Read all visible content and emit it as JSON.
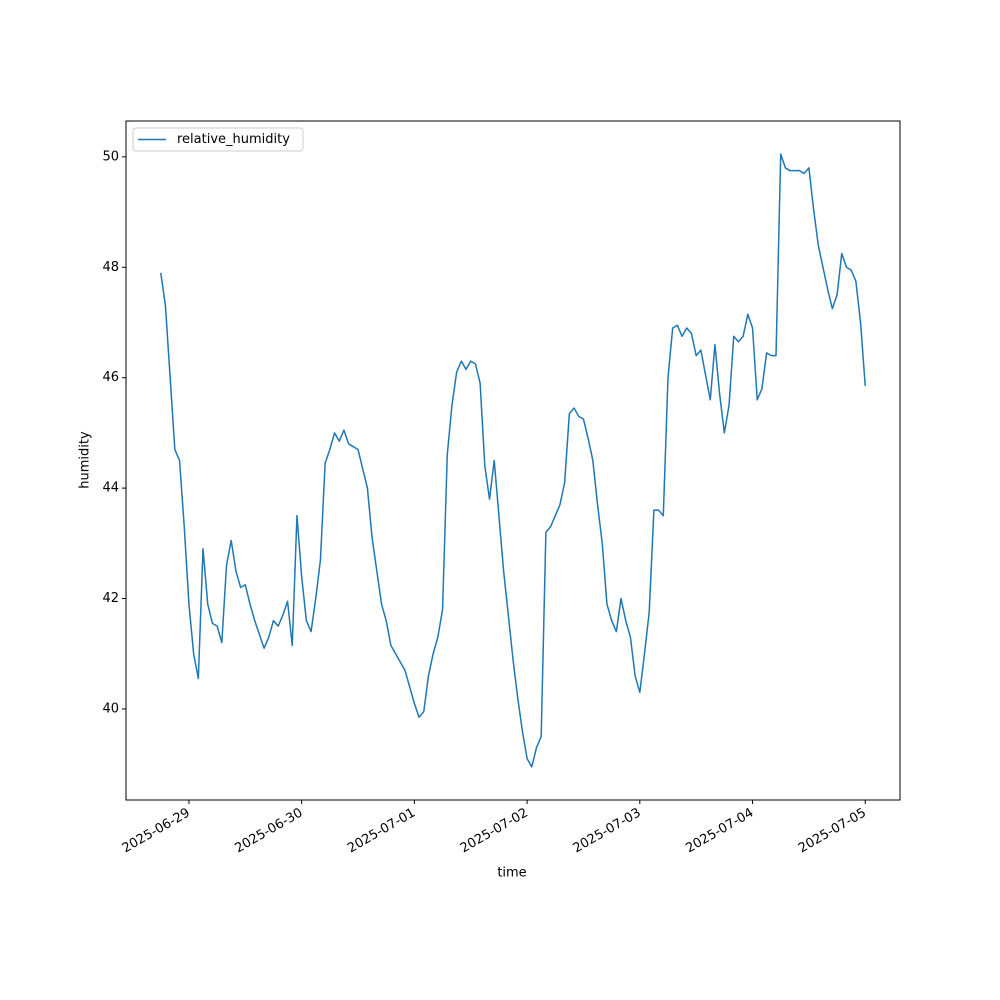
{
  "chart_data": {
    "type": "line",
    "xlabel": "time",
    "ylabel": "humidity",
    "x": [
      "2025-06-28 18:00",
      "2025-06-28 19:00",
      "2025-06-28 20:00",
      "2025-06-28 21:00",
      "2025-06-28 22:00",
      "2025-06-28 23:00",
      "2025-06-29 00:00",
      "2025-06-29 01:00",
      "2025-06-29 02:00",
      "2025-06-29 03:00",
      "2025-06-29 04:00",
      "2025-06-29 05:00",
      "2025-06-29 06:00",
      "2025-06-29 07:00",
      "2025-06-29 08:00",
      "2025-06-29 09:00",
      "2025-06-29 10:00",
      "2025-06-29 11:00",
      "2025-06-29 12:00",
      "2025-06-29 13:00",
      "2025-06-29 14:00",
      "2025-06-29 15:00",
      "2025-06-29 16:00",
      "2025-06-29 17:00",
      "2025-06-29 18:00",
      "2025-06-29 19:00",
      "2025-06-29 20:00",
      "2025-06-29 21:00",
      "2025-06-29 22:00",
      "2025-06-29 23:00",
      "2025-06-30 00:00",
      "2025-06-30 01:00",
      "2025-06-30 02:00",
      "2025-06-30 03:00",
      "2025-06-30 04:00",
      "2025-06-30 05:00",
      "2025-06-30 06:00",
      "2025-06-30 07:00",
      "2025-06-30 08:00",
      "2025-06-30 09:00",
      "2025-06-30 10:00",
      "2025-06-30 11:00",
      "2025-06-30 12:00",
      "2025-06-30 13:00",
      "2025-06-30 14:00",
      "2025-06-30 15:00",
      "2025-06-30 16:00",
      "2025-06-30 17:00",
      "2025-06-30 18:00",
      "2025-06-30 19:00",
      "2025-06-30 20:00",
      "2025-06-30 21:00",
      "2025-06-30 22:00",
      "2025-06-30 23:00",
      "2025-07-01 00:00",
      "2025-07-01 01:00",
      "2025-07-01 02:00",
      "2025-07-01 03:00",
      "2025-07-01 04:00",
      "2025-07-01 05:00",
      "2025-07-01 06:00",
      "2025-07-01 07:00",
      "2025-07-01 08:00",
      "2025-07-01 09:00",
      "2025-07-01 10:00",
      "2025-07-01 11:00",
      "2025-07-01 12:00",
      "2025-07-01 13:00",
      "2025-07-01 14:00",
      "2025-07-01 15:00",
      "2025-07-01 16:00",
      "2025-07-01 17:00",
      "2025-07-01 18:00",
      "2025-07-01 19:00",
      "2025-07-01 20:00",
      "2025-07-01 21:00",
      "2025-07-01 22:00",
      "2025-07-01 23:00",
      "2025-07-02 00:00",
      "2025-07-02 01:00",
      "2025-07-02 02:00",
      "2025-07-02 03:00",
      "2025-07-02 04:00",
      "2025-07-02 05:00",
      "2025-07-02 06:00",
      "2025-07-02 07:00",
      "2025-07-02 08:00",
      "2025-07-02 09:00",
      "2025-07-02 10:00",
      "2025-07-02 11:00",
      "2025-07-02 12:00",
      "2025-07-02 13:00",
      "2025-07-02 14:00",
      "2025-07-02 15:00",
      "2025-07-02 16:00",
      "2025-07-02 17:00",
      "2025-07-02 18:00",
      "2025-07-02 19:00",
      "2025-07-02 20:00",
      "2025-07-02 21:00",
      "2025-07-02 22:00",
      "2025-07-02 23:00",
      "2025-07-03 00:00",
      "2025-07-03 01:00",
      "2025-07-03 02:00",
      "2025-07-03 03:00",
      "2025-07-03 04:00",
      "2025-07-03 05:00",
      "2025-07-03 06:00",
      "2025-07-03 07:00",
      "2025-07-03 08:00",
      "2025-07-03 09:00",
      "2025-07-03 10:00",
      "2025-07-03 11:00",
      "2025-07-03 12:00",
      "2025-07-03 13:00",
      "2025-07-03 14:00",
      "2025-07-03 15:00",
      "2025-07-03 16:00",
      "2025-07-03 17:00",
      "2025-07-03 18:00",
      "2025-07-03 19:00",
      "2025-07-03 20:00",
      "2025-07-03 21:00",
      "2025-07-03 22:00",
      "2025-07-03 23:00",
      "2025-07-04 00:00",
      "2025-07-04 01:00",
      "2025-07-04 02:00",
      "2025-07-04 03:00",
      "2025-07-04 04:00",
      "2025-07-04 05:00",
      "2025-07-04 06:00",
      "2025-07-04 07:00",
      "2025-07-04 08:00",
      "2025-07-04 09:00",
      "2025-07-04 10:00",
      "2025-07-04 11:00",
      "2025-07-04 12:00",
      "2025-07-04 13:00",
      "2025-07-04 14:00",
      "2025-07-04 15:00",
      "2025-07-04 16:00",
      "2025-07-04 17:00",
      "2025-07-04 18:00",
      "2025-07-04 19:00",
      "2025-07-04 20:00",
      "2025-07-04 21:00",
      "2025-07-04 22:00",
      "2025-07-04 23:00",
      "2025-07-05 00:00"
    ],
    "series": [
      {
        "name": "relative_humidity",
        "color": "#1f77b4",
        "values": [
          47.9,
          47.3,
          46.0,
          44.7,
          44.5,
          43.3,
          41.9,
          41.0,
          40.55,
          42.9,
          41.9,
          41.55,
          41.5,
          41.2,
          42.6,
          43.05,
          42.5,
          42.2,
          42.25,
          41.9,
          41.6,
          41.35,
          41.1,
          41.3,
          41.6,
          41.5,
          41.7,
          41.95,
          41.15,
          43.5,
          42.4,
          41.6,
          41.4,
          42.0,
          42.7,
          44.45,
          44.7,
          45.0,
          44.85,
          45.05,
          44.8,
          44.75,
          44.7,
          44.35,
          44.0,
          43.1,
          42.5,
          41.9,
          41.6,
          41.15,
          41.0,
          40.85,
          40.7,
          40.4,
          40.1,
          39.85,
          39.95,
          40.6,
          41.0,
          41.3,
          41.8,
          44.6,
          45.5,
          46.1,
          46.3,
          46.15,
          46.3,
          46.25,
          45.9,
          44.4,
          43.8,
          44.5,
          43.5,
          42.5,
          41.7,
          40.9,
          40.2,
          39.6,
          39.1,
          38.95,
          39.3,
          39.5,
          43.2,
          43.3,
          43.5,
          43.7,
          44.1,
          45.35,
          45.45,
          45.3,
          45.25,
          44.9,
          44.5,
          43.7,
          43.0,
          41.9,
          41.6,
          41.4,
          42.0,
          41.6,
          41.3,
          40.6,
          40.3,
          41.0,
          41.75,
          43.6,
          43.6,
          43.5,
          46.0,
          46.9,
          46.95,
          46.75,
          46.9,
          46.8,
          46.4,
          46.5,
          46.05,
          45.6,
          46.6,
          45.7,
          45.0,
          45.5,
          46.75,
          46.65,
          46.75,
          47.15,
          46.9,
          45.6,
          45.8,
          46.45,
          46.4,
          46.4,
          50.05,
          49.8,
          49.75,
          49.75,
          49.75,
          49.7,
          49.8,
          49.05,
          48.4,
          48.0,
          47.6,
          47.25,
          47.5,
          48.25,
          48.0,
          47.95,
          47.75,
          47.0,
          45.85
        ]
      }
    ],
    "xlim": [
      "2025-06-28 10:36",
      "2025-07-05 07:24"
    ],
    "xticks": [
      "2025-06-29",
      "2025-06-30",
      "2025-07-01",
      "2025-07-02",
      "2025-07-03",
      "2025-07-04",
      "2025-07-05"
    ],
    "ylim": [
      38.35,
      50.65
    ],
    "yticks": [
      40,
      42,
      44,
      46,
      48,
      50
    ],
    "grid": false,
    "legend": "upper left"
  }
}
